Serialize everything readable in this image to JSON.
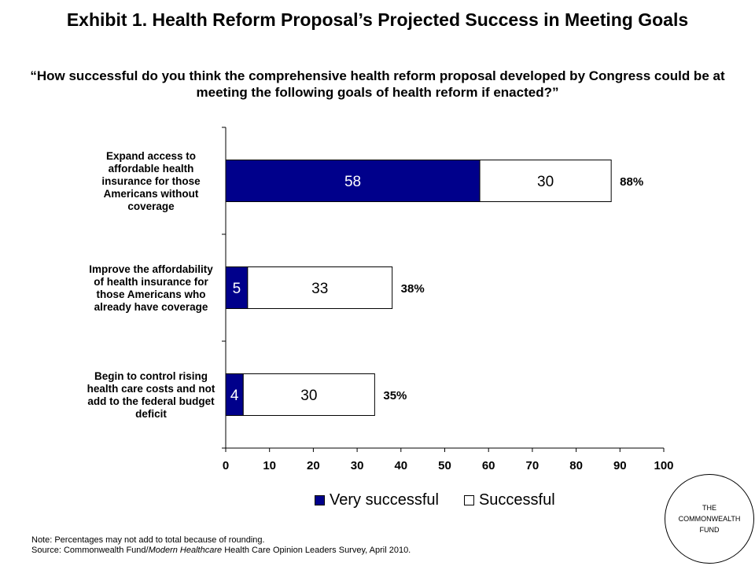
{
  "title": "Exhibit 1. Health Reform Proposal’s Projected Success in Meeting Goals",
  "subtitle": "“How successful do you think the comprehensive health reform proposal developed by Congress could be at meeting the following goals of health reform if enacted?”",
  "note": {
    "line1": "Note: Percentages may not add to total because of rounding.",
    "source_prefix": "Source: Commonwealth Fund/",
    "source_italic": "Modern Healthcare",
    "source_suffix": " Health Care Opinion Leaders Survey, April 2010."
  },
  "logo": {
    "line1": "THE",
    "line2": "COMMONWEALTH",
    "line3": "FUND"
  },
  "colors": {
    "very_successful": "#00008B",
    "successful": "#FFFFFF"
  },
  "chart_data": {
    "type": "bar",
    "orientation": "horizontal",
    "stacked": true,
    "categories": [
      [
        "Expand access to",
        "affordable health",
        "insurance for those",
        "Americans without",
        "coverage"
      ],
      [
        "Improve the affordability",
        "of health insurance for",
        "those Americans who",
        "already have coverage"
      ],
      [
        "Begin to control rising",
        "health care costs and not",
        "add to the federal budget",
        "deficit"
      ]
    ],
    "series": [
      {
        "name": "Very successful",
        "values": [
          58,
          5,
          4
        ],
        "color": "#00008B"
      },
      {
        "name": "Successful",
        "values": [
          30,
          33,
          30
        ],
        "color": "#FFFFFF"
      }
    ],
    "totals": [
      "88%",
      "38%",
      "35%"
    ],
    "xlim": [
      0,
      100
    ],
    "xticks": [
      0,
      10,
      20,
      30,
      40,
      50,
      60,
      70,
      80,
      90,
      100
    ],
    "legend_position": "bottom",
    "grid": false
  }
}
